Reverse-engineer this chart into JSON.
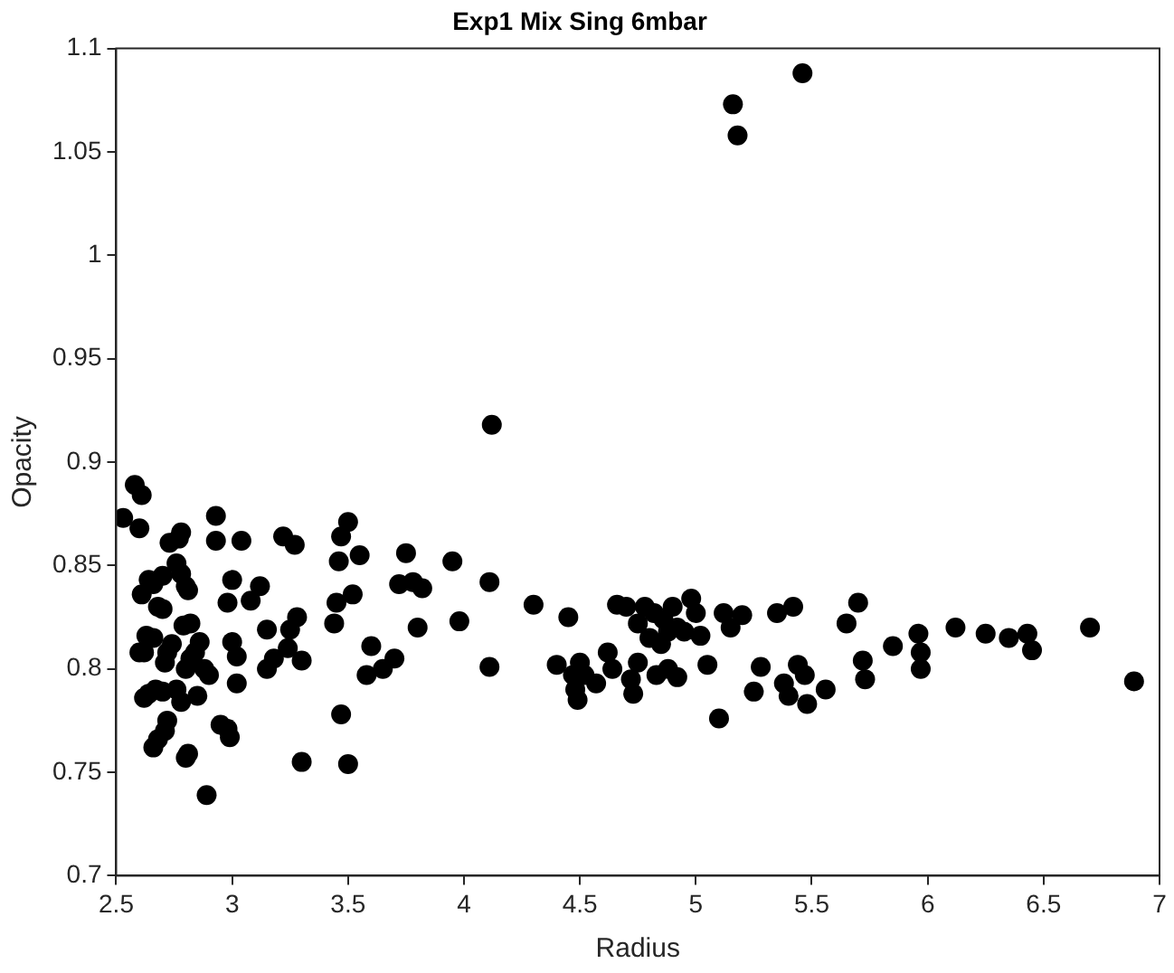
{
  "chart_data": {
    "type": "scatter",
    "title": "Exp1 Mix Sing 6mbar",
    "xlabel": "Radius",
    "ylabel": "Opacity",
    "marker": "circle",
    "grid": false,
    "legend": false,
    "xlim": [
      2.5,
      7
    ],
    "xticks": [
      2.5,
      3,
      3.5,
      4,
      4.5,
      5,
      5.5,
      6,
      6.5,
      7
    ],
    "ylim": [
      0.7,
      1.1
    ],
    "yticks": [
      0.7,
      0.75,
      0.8,
      0.85,
      0.9,
      0.95,
      1,
      1.05,
      1.1
    ],
    "series": [
      {
        "color": "#000000",
        "x": [
          2.53,
          2.58,
          2.61,
          2.6,
          2.61,
          2.64,
          2.66,
          2.7,
          2.68,
          2.7,
          2.63,
          2.62,
          2.66,
          2.6,
          2.64,
          2.62,
          2.67,
          2.7,
          2.66,
          2.68,
          2.71,
          2.72,
          2.71,
          2.72,
          2.74,
          2.73,
          2.77,
          2.78,
          2.76,
          2.78,
          2.8,
          2.81,
          2.79,
          2.82,
          2.8,
          2.82,
          2.84,
          2.86,
          2.78,
          2.76,
          2.81,
          2.8,
          2.85,
          2.88,
          2.9,
          2.89,
          2.93,
          2.93,
          2.95,
          2.98,
          2.99,
          2.98,
          3.0,
          3.02,
          3.0,
          3.02,
          3.04,
          3.08,
          3.12,
          3.15,
          3.15,
          3.18,
          3.22,
          3.24,
          3.25,
          3.27,
          3.28,
          3.3,
          3.3,
          3.44,
          3.45,
          3.46,
          3.47,
          3.47,
          3.5,
          3.5,
          3.52,
          3.55,
          3.58,
          3.6,
          3.65,
          3.7,
          3.72,
          3.75,
          3.78,
          3.8,
          3.82,
          3.95,
          3.98,
          4.11,
          4.11,
          4.12,
          4.3,
          4.4,
          4.45,
          4.47,
          4.48,
          4.49,
          4.5,
          4.52,
          4.57,
          4.62,
          4.64,
          4.66,
          4.7,
          4.72,
          4.73,
          4.75,
          4.75,
          4.78,
          4.8,
          4.82,
          4.83,
          4.85,
          4.86,
          4.88,
          4.88,
          4.9,
          4.92,
          4.92,
          4.95,
          4.98,
          5.0,
          5.02,
          5.05,
          5.1,
          5.12,
          5.15,
          5.16,
          5.18,
          5.2,
          5.25,
          5.28,
          5.35,
          5.38,
          5.4,
          5.42,
          5.44,
          5.46,
          5.47,
          5.48,
          5.56,
          5.65,
          5.7,
          5.72,
          5.73,
          5.85,
          5.96,
          5.97,
          5.97,
          6.12,
          6.25,
          6.35,
          6.43,
          6.45,
          6.7,
          6.89
        ],
        "values": [
          0.873,
          0.889,
          0.884,
          0.868,
          0.836,
          0.843,
          0.841,
          0.845,
          0.83,
          0.829,
          0.816,
          0.808,
          0.815,
          0.808,
          0.788,
          0.786,
          0.79,
          0.789,
          0.762,
          0.766,
          0.77,
          0.775,
          0.803,
          0.808,
          0.812,
          0.861,
          0.863,
          0.866,
          0.851,
          0.846,
          0.84,
          0.838,
          0.821,
          0.822,
          0.8,
          0.805,
          0.808,
          0.813,
          0.784,
          0.79,
          0.759,
          0.757,
          0.787,
          0.8,
          0.797,
          0.739,
          0.874,
          0.862,
          0.773,
          0.771,
          0.767,
          0.832,
          0.843,
          0.793,
          0.813,
          0.806,
          0.862,
          0.833,
          0.84,
          0.819,
          0.8,
          0.805,
          0.864,
          0.81,
          0.819,
          0.86,
          0.825,
          0.804,
          0.755,
          0.822,
          0.832,
          0.852,
          0.778,
          0.864,
          0.871,
          0.754,
          0.836,
          0.855,
          0.797,
          0.811,
          0.8,
          0.805,
          0.841,
          0.856,
          0.842,
          0.82,
          0.839,
          0.852,
          0.823,
          0.842,
          0.801,
          0.918,
          0.831,
          0.802,
          0.825,
          0.797,
          0.79,
          0.785,
          0.803,
          0.797,
          0.793,
          0.808,
          0.8,
          0.831,
          0.83,
          0.795,
          0.788,
          0.803,
          0.822,
          0.83,
          0.815,
          0.827,
          0.797,
          0.812,
          0.824,
          0.8,
          0.818,
          0.83,
          0.82,
          0.796,
          0.818,
          0.834,
          0.827,
          0.816,
          0.802,
          0.776,
          0.827,
          0.82,
          1.073,
          1.058,
          0.826,
          0.789,
          0.801,
          0.827,
          0.793,
          0.787,
          0.83,
          0.802,
          1.088,
          0.797,
          0.783,
          0.79,
          0.822,
          0.832,
          0.804,
          0.795,
          0.811,
          0.817,
          0.808,
          0.8,
          0.82,
          0.817,
          0.815,
          0.817,
          0.809,
          0.82,
          0.794
        ]
      }
    ]
  }
}
